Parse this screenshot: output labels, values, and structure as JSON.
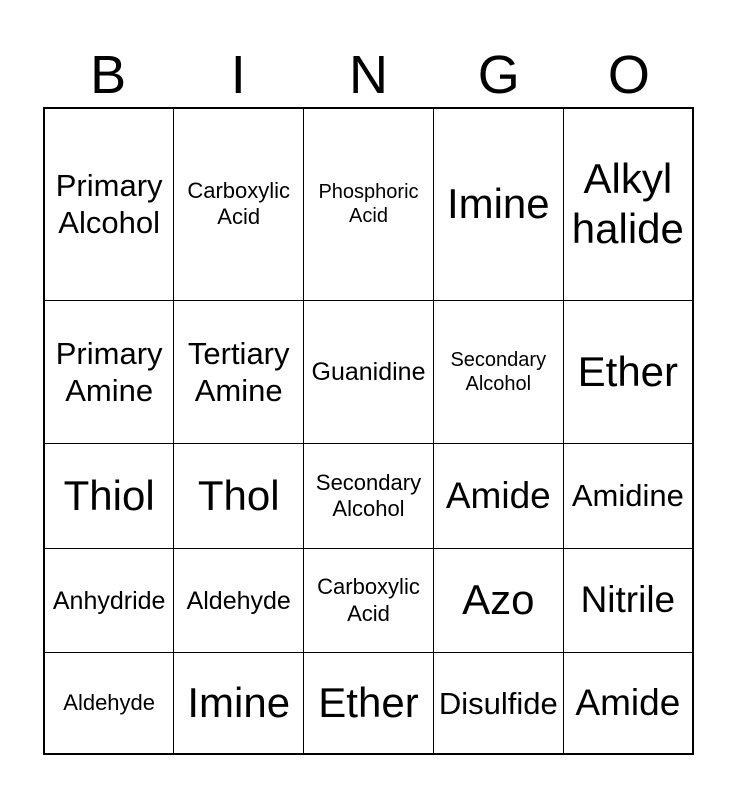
{
  "title": {
    "letters": [
      "B",
      "I",
      "N",
      "G",
      "O"
    ]
  },
  "card": {
    "rows": [
      [
        {
          "label": "Primary Alcohol",
          "size": "lg"
        },
        {
          "label": "Carboxylic Acid",
          "size": "sm"
        },
        {
          "label": "Phosphoric Acid",
          "size": "xs"
        },
        {
          "label": "Imine",
          "size": "xxl"
        },
        {
          "label": "Alkyl halide",
          "size": "xxl"
        }
      ],
      [
        {
          "label": "Primary Amine",
          "size": "lg"
        },
        {
          "label": "Tertiary Amine",
          "size": "lg"
        },
        {
          "label": "Guanidine",
          "size": "md"
        },
        {
          "label": "Secondary Alcohol",
          "size": "xs"
        },
        {
          "label": "Ether",
          "size": "xxl"
        }
      ],
      [
        {
          "label": "Thiol",
          "size": "xxl"
        },
        {
          "label": "Thol",
          "size": "xxl"
        },
        {
          "label": "Secondary Alcohol",
          "size": "sm"
        },
        {
          "label": "Amide",
          "size": "xl"
        },
        {
          "label": "Amidine",
          "size": "lg"
        }
      ],
      [
        {
          "label": "Anhydride",
          "size": "md"
        },
        {
          "label": "Aldehyde",
          "size": "md"
        },
        {
          "label": "Carboxylic Acid",
          "size": "sm"
        },
        {
          "label": "Azo",
          "size": "xxl"
        },
        {
          "label": "Nitrile",
          "size": "xl"
        }
      ],
      [
        {
          "label": "Aldehyde",
          "size": "sm"
        },
        {
          "label": "Imine",
          "size": "xxl"
        },
        {
          "label": "Ether",
          "size": "xxl"
        },
        {
          "label": "Disulfide",
          "size": "lg"
        },
        {
          "label": "Amide",
          "size": "xl"
        }
      ]
    ]
  },
  "colors": {
    "background": "#ffffff",
    "grid_border": "#000000",
    "text": "#000000"
  }
}
